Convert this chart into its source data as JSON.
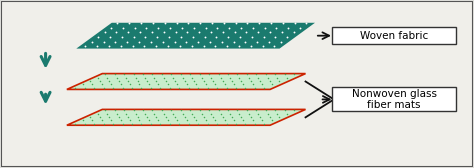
{
  "bg_color": "#f0efea",
  "border_color": "#555555",
  "woven_fill": "#1a7a6e",
  "woven_dot_color": "#ffffff",
  "nonwoven_fill": "#c8edcc",
  "nonwoven_border": "#cc2200",
  "nonwoven_dot_color": "#44aa55",
  "arrow_down_color": "#1a7a6e",
  "label_arrow_color": "#111111",
  "box_color": "#ffffff",
  "box_border": "#333333",
  "label1": "Woven fabric",
  "label2": "Nonwoven glass\nfiber mats",
  "font_size": 7.5,
  "fig_bg": "#dcdcd8"
}
